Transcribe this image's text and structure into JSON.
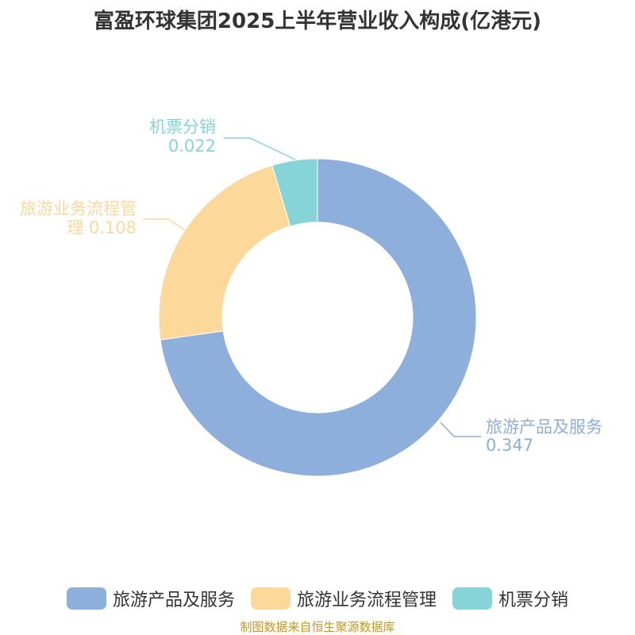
{
  "chart_data": {
    "type": "pie",
    "variant": "donut",
    "title": "富盈环球集团2025上半年营业收入构成(亿港元)",
    "categories": [
      "旅游产品及服务",
      "旅游业务流程管理",
      "机票分销"
    ],
    "values": [
      0.347,
      0.108,
      0.022
    ],
    "colors": [
      "#8eaedb",
      "#fdd89b",
      "#86d4d8"
    ],
    "labels": [
      {
        "lines": [
          "旅游产品及服务",
          "0.347"
        ]
      },
      {
        "lines": [
          "旅游业务流程管",
          "理 0.108"
        ]
      },
      {
        "lines": [
          "机票分销",
          "0.022"
        ]
      }
    ],
    "legend_placement": "bottom",
    "start_angle": "top, clockwise"
  },
  "source": "制图数据来自恒生聚源数据库"
}
